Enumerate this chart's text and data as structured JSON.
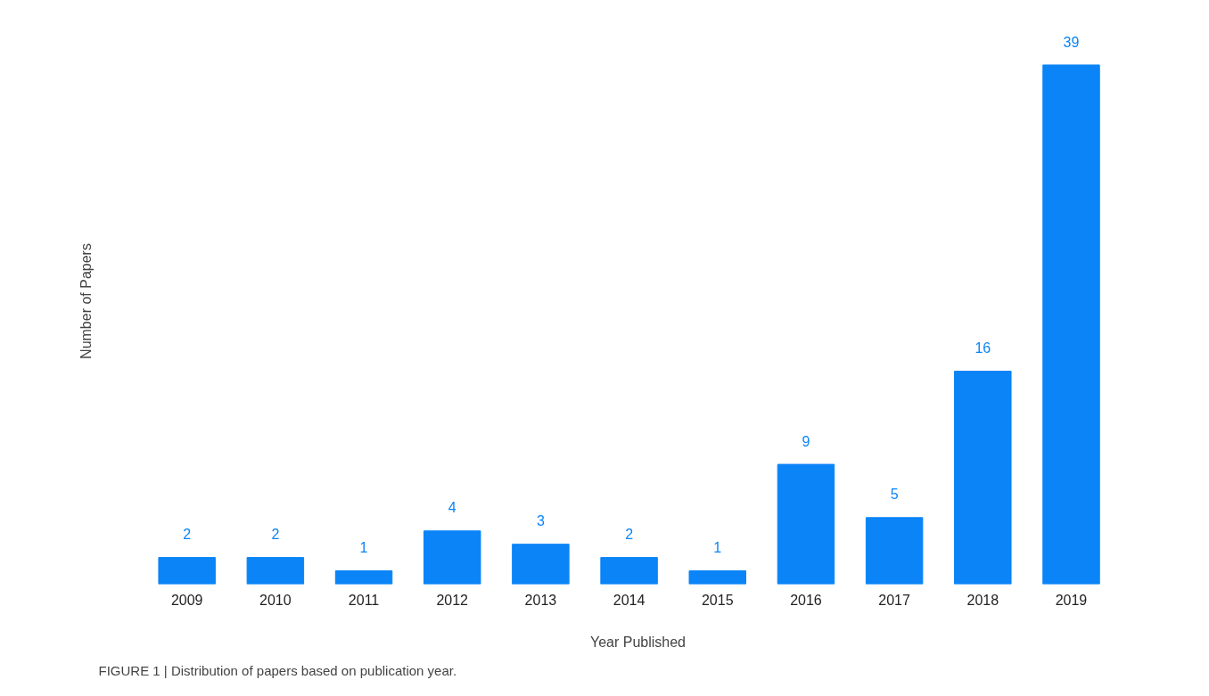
{
  "chart_data": {
    "type": "bar",
    "xlabel": "Year Published",
    "ylabel": "Number of Papers",
    "categories": [
      "2009",
      "2010",
      "2011",
      "2012",
      "2013",
      "2014",
      "2015",
      "2016",
      "2017",
      "2018",
      "2019"
    ],
    "values": [
      2,
      2,
      1,
      4,
      3,
      2,
      1,
      9,
      5,
      16,
      39
    ],
    "color": "#0a84f7",
    "data_labels": true,
    "tick_labels": "x",
    "annotations": [
      "FIGURE 1 | Distribution of papers based on publication year."
    ]
  }
}
